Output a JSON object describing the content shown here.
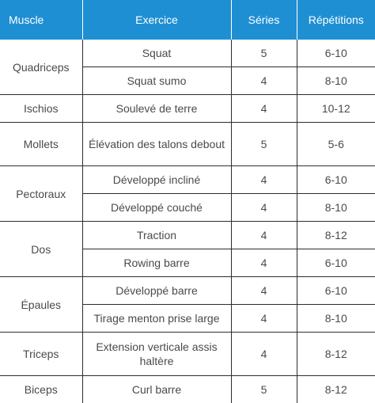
{
  "table": {
    "headers": {
      "muscle": "Muscle",
      "exercise": "Exercice",
      "sets": "Séries",
      "reps": "Répétitions"
    },
    "groups": [
      {
        "muscle": "Quadriceps",
        "rows": [
          {
            "exercise": "Squat",
            "sets": "5",
            "reps": "6-10"
          },
          {
            "exercise": "Squat sumo",
            "sets": "4",
            "reps": "8-10"
          }
        ]
      },
      {
        "muscle": "Ischios",
        "rows": [
          {
            "exercise": "Soulevé de terre",
            "sets": "4",
            "reps": "10-12"
          }
        ]
      },
      {
        "muscle": "Mollets",
        "rows": [
          {
            "exercise": "Élévation des talons debout",
            "sets": "5",
            "reps": "5-6"
          }
        ]
      },
      {
        "muscle": "Pectoraux",
        "rows": [
          {
            "exercise": "Développé incliné",
            "sets": "4",
            "reps": "6-10"
          },
          {
            "exercise": "Développé couché",
            "sets": "4",
            "reps": "8-10"
          }
        ]
      },
      {
        "muscle": "Dos",
        "rows": [
          {
            "exercise": "Traction",
            "sets": "4",
            "reps": "8-12"
          },
          {
            "exercise": "Rowing barre",
            "sets": "4",
            "reps": "6-10"
          }
        ]
      },
      {
        "muscle": "Épaules",
        "rows": [
          {
            "exercise": "Développé barre",
            "sets": "4",
            "reps": "6-10"
          },
          {
            "exercise": "Tirage menton prise large",
            "sets": "4",
            "reps": "8-10"
          }
        ]
      },
      {
        "muscle": "Triceps",
        "rows": [
          {
            "exercise": "Extension verticale assis haltère",
            "sets": "4",
            "reps": "8-12"
          }
        ]
      },
      {
        "muscle": "Biceps",
        "rows": [
          {
            "exercise": "Curl barre",
            "sets": "5",
            "reps": "8-12"
          }
        ]
      }
    ]
  }
}
